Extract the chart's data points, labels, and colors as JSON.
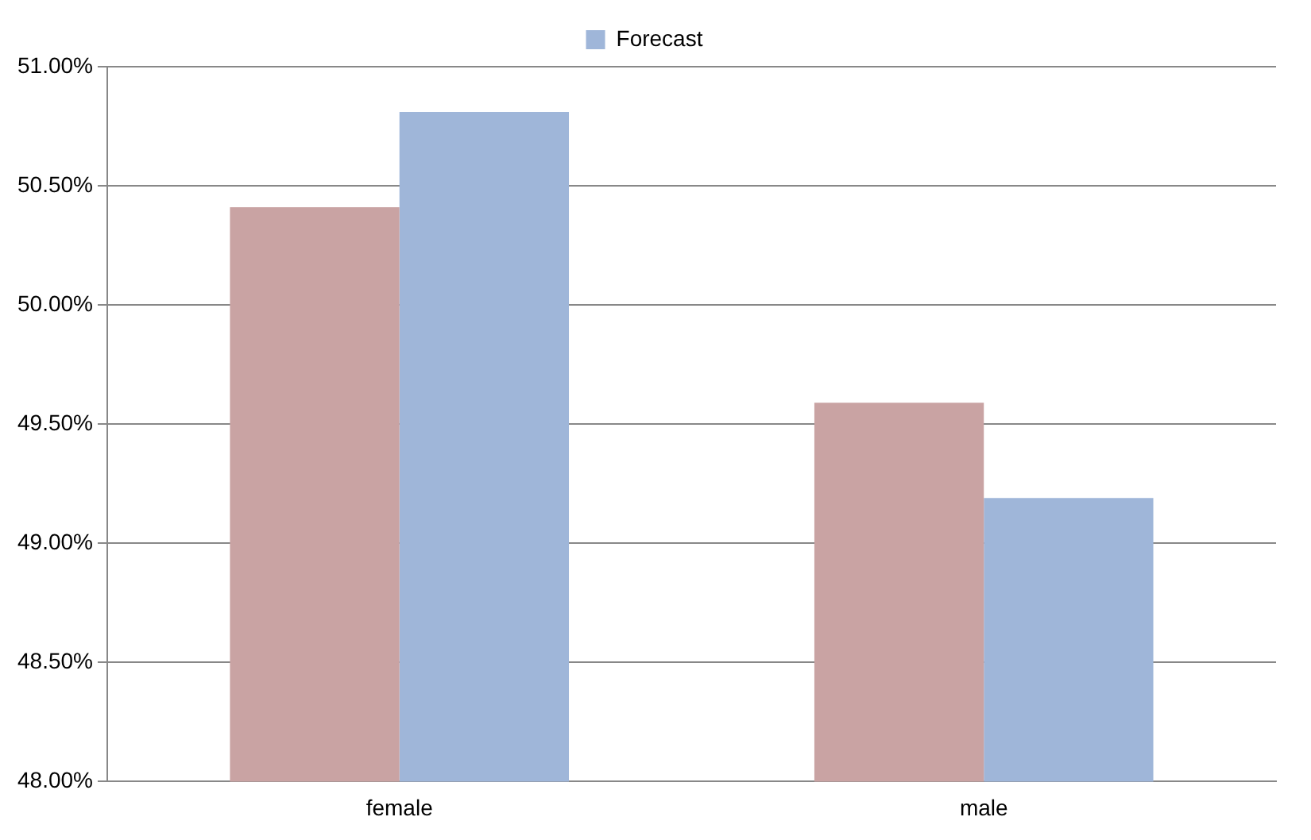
{
  "chart_data": {
    "type": "bar",
    "categories": [
      "female",
      "male"
    ],
    "series": [
      {
        "color": "#c9a3a3",
        "values": [
          50.41,
          49.59
        ]
      },
      {
        "name": "Forecast",
        "color": "#9fb6d9",
        "values": [
          50.81,
          49.19
        ]
      }
    ],
    "ylim": [
      48,
      51
    ],
    "yticks": [
      {
        "value": 48,
        "label": "48.00%"
      },
      {
        "value": 48.5,
        "label": "48.50%"
      },
      {
        "value": 49,
        "label": "49.00%"
      },
      {
        "value": 49.5,
        "label": "49.50%"
      },
      {
        "value": 50,
        "label": "50.00%"
      },
      {
        "value": 50.5,
        "label": "50.50%"
      },
      {
        "value": 51,
        "label": "51.00%"
      }
    ],
    "grid": "y",
    "legend": "top"
  }
}
